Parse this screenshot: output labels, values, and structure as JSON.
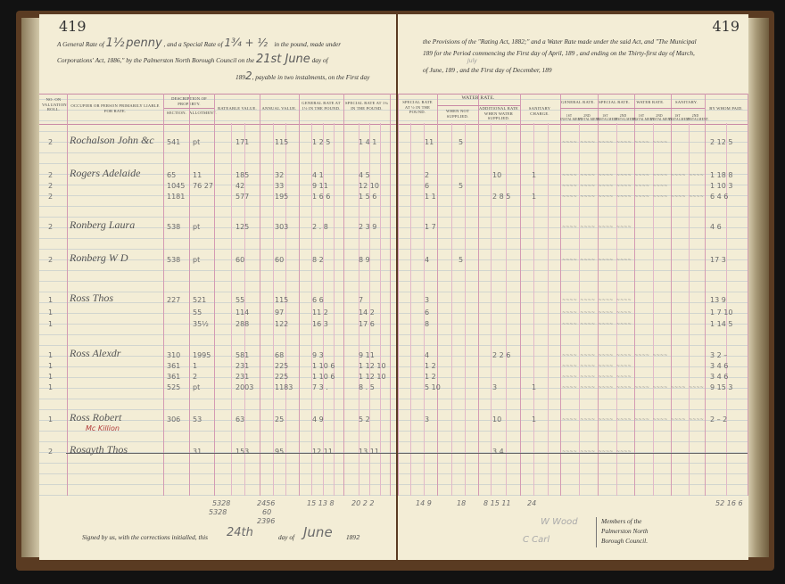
{
  "left_page": {
    "page_number": "419",
    "heading_lines": [
      "A General Rate of",
      "penny",
      ", and a Special Rate of",
      "in the pound, made under",
      "Corporations' Act, 1886,\" by the Palmerston North Borough Council on the",
      "21st June",
      "day of",
      "189",
      ", payable in two instalments, on the First day"
    ],
    "handwritten": {
      "general_rate": "1½",
      "special_rate": "1¾ + ½",
      "day": "21st June",
      "year": "2"
    },
    "columns": {
      "roll": "No. on Valuation Roll.",
      "occupier": "Occupier or Person Primarily Liable for Rate.",
      "description": "Description of Property.",
      "section": "Section.",
      "allotment": "Allotment.",
      "rateable": "Rateable Value.",
      "annual": "Annual Value.",
      "general_rate": "General Rate at 1½ in the pound.",
      "special_rate": "Special Rate at 1¾ in the pound."
    },
    "rows": [
      {
        "roll": "2",
        "name": "Rochalson John &c",
        "section": "541",
        "allotment": "pt",
        "rateable": "171",
        "annual": "115",
        "general": "1 2 5",
        "special": "1 4 1"
      },
      {
        "roll": "2",
        "name": "Rogers Adelaide",
        "section": "65",
        "allotment": "11",
        "rateable": "185",
        "annual": "32",
        "general": "4 1",
        "special": "4 5"
      },
      {
        "roll": "2",
        "name": "",
        "section": "1045",
        "allotment": "76 27",
        "rateable": "42",
        "annual": "33",
        "general": "9 11",
        "special": "12 10"
      },
      {
        "roll": "2",
        "name": "",
        "section": "1181",
        "allotment": "",
        "rateable": "577",
        "annual": "195",
        "general": "1 6 6",
        "special": "1 5 6"
      },
      {
        "roll": "2",
        "name": "Ronberg Laura",
        "section": "538",
        "allotment": "pt",
        "rateable": "125",
        "annual": "303",
        "general": "2 . 8",
        "special": "2 3 9"
      },
      {
        "roll": "2",
        "name": "Ronberg W D",
        "section": "538",
        "allotment": "pt",
        "rateable": "60",
        "annual": "60",
        "general": "8 2",
        "special": "8 9"
      },
      {
        "roll": "1",
        "name": "Ross Thos",
        "section": "227",
        "allotment": "521",
        "rateable": "55",
        "annual": "115",
        "general": "6 6",
        "special": "7"
      },
      {
        "roll": "1",
        "name": "",
        "section": "",
        "allotment": "55",
        "rateable": "114",
        "annual": "97",
        "general": "11 2",
        "special": "14 2"
      },
      {
        "roll": "1",
        "name": "",
        "section": "",
        "allotment": "35½",
        "rateable": "288",
        "annual": "122",
        "general": "16 3",
        "special": "17 6"
      },
      {
        "roll": "1",
        "name": "Ross Alexdr",
        "section": "310",
        "allotment": "1995",
        "rateable": "581",
        "annual": "68",
        "general": "9 3",
        "special": "9 11"
      },
      {
        "roll": "1",
        "name": "",
        "section": "361",
        "allotment": "1",
        "rateable": "231",
        "annual": "225",
        "general": "1 10 6",
        "special": "1 12 10"
      },
      {
        "roll": "1",
        "name": "",
        "section": "361",
        "allotment": "2",
        "rateable": "231",
        "annual": "225",
        "general": "1 10 6",
        "special": "1 12 10"
      },
      {
        "roll": "1",
        "name": "",
        "section": "525",
        "allotment": "pt",
        "rateable": "2003",
        "annual": "1183",
        "general": "7 3 .",
        "special": "8 . 5"
      },
      {
        "roll": "1",
        "name": "Ross Robert",
        "section": "306",
        "allotment": "53",
        "rateable": "63",
        "annual": "25",
        "general": "4 9",
        "special": "5 2",
        "note": "Mc Killion"
      },
      {
        "roll": "2",
        "name": "Rosayth Thos",
        "section": "",
        "allotment": "31",
        "rateable": "153",
        "annual": "95",
        "general": "12 11",
        "special": "13 11",
        "struck": true
      }
    ],
    "totals": {
      "rateable": "5328",
      "rateable_below": "5328",
      "annual": "2456",
      "annual_adj": "60",
      "annual_below": "2396",
      "general": "15 13 8",
      "special": "20 2 2"
    },
    "signature_line": {
      "prefix": "Signed by us, with the corrections initialled, this",
      "day": "24th",
      "mid": "day of",
      "month": "June",
      "year_prefix": "189",
      "year": "2"
    }
  },
  "right_page": {
    "page_number": "419",
    "heading_lines": [
      "the Provisions of the \"Rating Act, 1882;\" and a Water Rate made under the said Act, and \"The Municipal",
      "189   for the Period commencing the First day of April, 189  , and ending on the Thirty-first day of March,",
      "of June, 189  , and the First day of December, 189  "
    ],
    "handwritten": {
      "july": "July"
    },
    "columns": {
      "special_rate": "Special Rate at ½ in the pound.",
      "water_rate": "Water Rate.",
      "not_supplied": "When Not Supplied.",
      "additional": "Additional Rate When Water Supplied.",
      "sanitary": "Sanitary Charge.",
      "paid_groups": [
        "General Rate.",
        "Special Rate.",
        "Water Rate.",
        "Sanitary."
      ],
      "instalments": [
        "1st Instalment.",
        "2nd Instalment."
      ],
      "by_whom_paid": "By Whom Paid."
    },
    "rows": [
      {
        "special": "11",
        "not_supplied": "5",
        "additional": "",
        "sanitary": "",
        "paid_marks": 6,
        "total": "2 12 5"
      },
      {
        "special": "2",
        "not_supplied": "",
        "additional": "10",
        "sanitary": "1",
        "paid_marks": 8,
        "total": "1 18 8"
      },
      {
        "special": "6",
        "not_supplied": "5",
        "additional": "",
        "sanitary": "",
        "paid_marks": 6,
        "total": "1 10 3"
      },
      {
        "special": "1 1",
        "not_supplied": "",
        "additional": "2 8 5",
        "sanitary": "1",
        "paid_marks": 8,
        "total": "6 4 6"
      },
      {
        "special": "1 7",
        "not_supplied": "",
        "additional": "",
        "sanitary": "",
        "paid_marks": 4,
        "total": "4 6"
      },
      {
        "special": "4",
        "not_supplied": "5",
        "additional": "",
        "sanitary": "",
        "paid_marks": 4,
        "total": "17 3"
      },
      {
        "special": "3",
        "not_supplied": "",
        "additional": "",
        "sanitary": "",
        "paid_marks": 4,
        "total": "13 9"
      },
      {
        "special": "6",
        "not_supplied": "",
        "additional": "",
        "sanitary": "",
        "paid_marks": 4,
        "total": "1 7 10"
      },
      {
        "special": "8",
        "not_supplied": "",
        "additional": "",
        "sanitary": "",
        "paid_marks": 4,
        "total": "1 14 5"
      },
      {
        "special": "4",
        "not_supplied": "",
        "additional": "2 2 6",
        "sanitary": "",
        "paid_marks": 6,
        "total": "3 2 –"
      },
      {
        "special": "1 2",
        "not_supplied": "",
        "additional": "",
        "sanitary": "",
        "paid_marks": 4,
        "total": "3 4 6"
      },
      {
        "special": "1 2",
        "not_supplied": "",
        "additional": "",
        "sanitary": "",
        "paid_marks": 4,
        "total": "3 4 6"
      },
      {
        "special": "5 10",
        "not_supplied": "",
        "additional": "3",
        "sanitary": "1",
        "paid_marks": 8,
        "total": "9 15 3"
      },
      {
        "special": "3",
        "not_supplied": "",
        "additional": "10",
        "sanitary": "1",
        "paid_marks": 8,
        "total": "2 – 2"
      },
      {
        "special": "",
        "not_supplied": "",
        "additional": "3 4",
        "sanitary": "",
        "paid_marks": 4,
        "total": "",
        "struck": true
      }
    ],
    "totals": {
      "special": "14 9",
      "not_supplied": "18",
      "additional": "8 15 11",
      "sanitary": "24",
      "total": "52 16 6"
    },
    "signatures": [
      "W Wood",
      "C Carl"
    ],
    "members_text": [
      "Members of the",
      "Palmerston North",
      "Borough Council."
    ]
  },
  "colors": {
    "paper": "#f3edd6",
    "rule_pink": "#d49bb3",
    "rule_blue": "#8ea6c6",
    "ink": "#5b5b5b",
    "red_ink": "#b23b3b",
    "cover": "#5a3b22"
  }
}
